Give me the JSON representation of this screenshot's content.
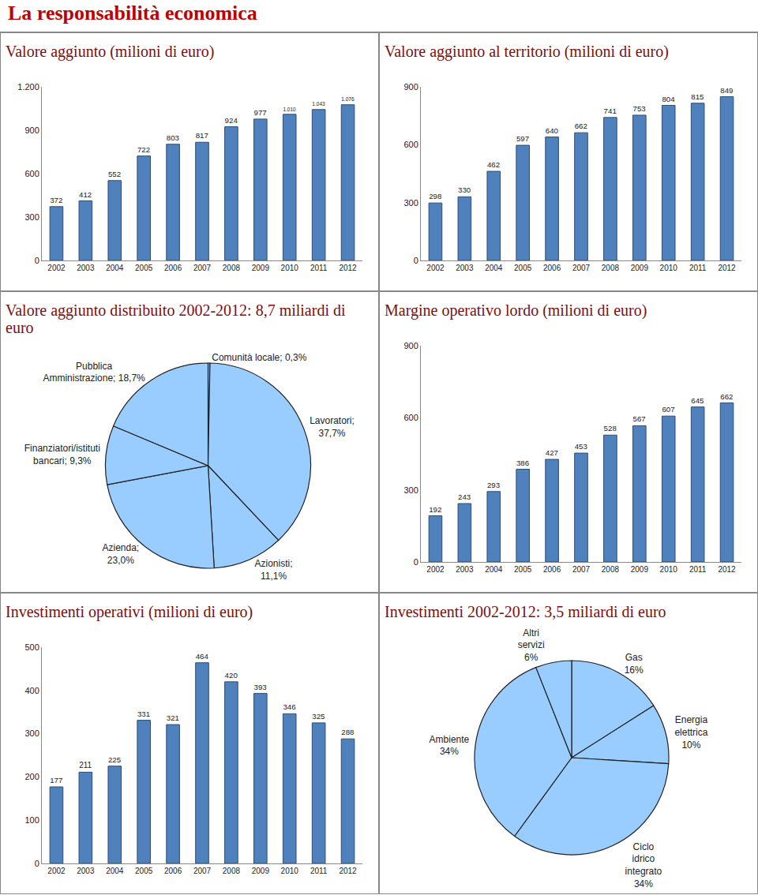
{
  "header": {
    "title": "La responsabilità economica"
  },
  "chart_data": [
    {
      "type": "bar",
      "title": "Valore aggiunto (milioni di euro)",
      "categories": [
        "2002",
        "2003",
        "2004",
        "2005",
        "2006",
        "2007",
        "2008",
        "2009",
        "2010",
        "2011",
        "2012"
      ],
      "values": [
        372,
        412,
        552,
        722,
        803,
        817,
        924,
        977,
        1010,
        1043,
        1076
      ],
      "value_labels": [
        "372",
        "412",
        "552",
        "722",
        "803",
        "817",
        "924",
        "977",
        "1.010",
        "1.043",
        "1.076"
      ],
      "color": "#4f81bd",
      "ylim": [
        0,
        1200
      ],
      "yticks": [
        0,
        300,
        600,
        900,
        {
          "value": 1200,
          "label": "1.200"
        }
      ],
      "grid": false,
      "data_labels": true
    },
    {
      "type": "bar",
      "title": "Valore aggiunto al territorio (milioni di euro)",
      "categories": [
        "2002",
        "2003",
        "2004",
        "2005",
        "2006",
        "2007",
        "2008",
        "2009",
        "2010",
        "2011",
        "2012"
      ],
      "values": [
        298,
        330,
        462,
        597,
        640,
        662,
        741,
        753,
        804,
        815,
        849
      ],
      "color": "#4f81bd",
      "ylim": [
        0,
        900
      ],
      "yticks": [
        0,
        300,
        600,
        900
      ],
      "grid": false,
      "data_labels": true
    },
    {
      "type": "pie",
      "title": "Valore aggiunto distribuito 2002-2012: 8,7 miliardi di euro",
      "values": [
        0.3,
        37.7,
        11.1,
        23.0,
        9.3,
        18.7
      ],
      "value_labels": [
        "Comunità locale; 0,3%",
        "Lavoratori;\n37,7%",
        "Azionisti;\n11,1%",
        "Azienda;\n23,0%",
        "Finanziatori/istituti\nbancari; 9,3%",
        "Pubblica\nAmministrazione; 18,7%"
      ],
      "color": "#99ccff",
      "data_labels": true
    },
    {
      "type": "bar",
      "title": "Margine operativo lordo (milioni di euro)",
      "categories": [
        "2002",
        "2003",
        "2004",
        "2005",
        "2006",
        "2007",
        "2008",
        "2009",
        "2010",
        "2011",
        "2012"
      ],
      "values": [
        192,
        243,
        293,
        386,
        427,
        453,
        528,
        567,
        607,
        645,
        662
      ],
      "color": "#4f81bd",
      "ylim": [
        0,
        900
      ],
      "yticks": [
        0,
        300,
        600,
        900
      ],
      "grid": false,
      "data_labels": true
    },
    {
      "type": "bar",
      "title": "Investimenti operativi (milioni di euro)",
      "categories": [
        "2002",
        "2003",
        "2004",
        "2005",
        "2006",
        "2007",
        "2008",
        "2009",
        "2010",
        "2011",
        "2012"
      ],
      "values": [
        177,
        211,
        225,
        331,
        321,
        464,
        420,
        393,
        346,
        325,
        288
      ],
      "color": "#4f81bd",
      "ylim": [
        0,
        500
      ],
      "yticks": [
        0,
        100,
        200,
        300,
        400,
        500
      ],
      "grid": false,
      "data_labels": true
    },
    {
      "type": "pie",
      "title": "Investimenti 2002-2012: 3,5 miliardi di euro",
      "values": [
        16,
        10,
        34,
        34,
        6
      ],
      "value_labels": [
        "Gas\n16%",
        "Energia\nelettrica\n10%",
        "Ciclo\nidrico\nintegrato\n34%",
        "Ambiente\n34%",
        "Altri\nservizi\n6%"
      ],
      "color": "#99ccff",
      "data_labels": true
    }
  ]
}
